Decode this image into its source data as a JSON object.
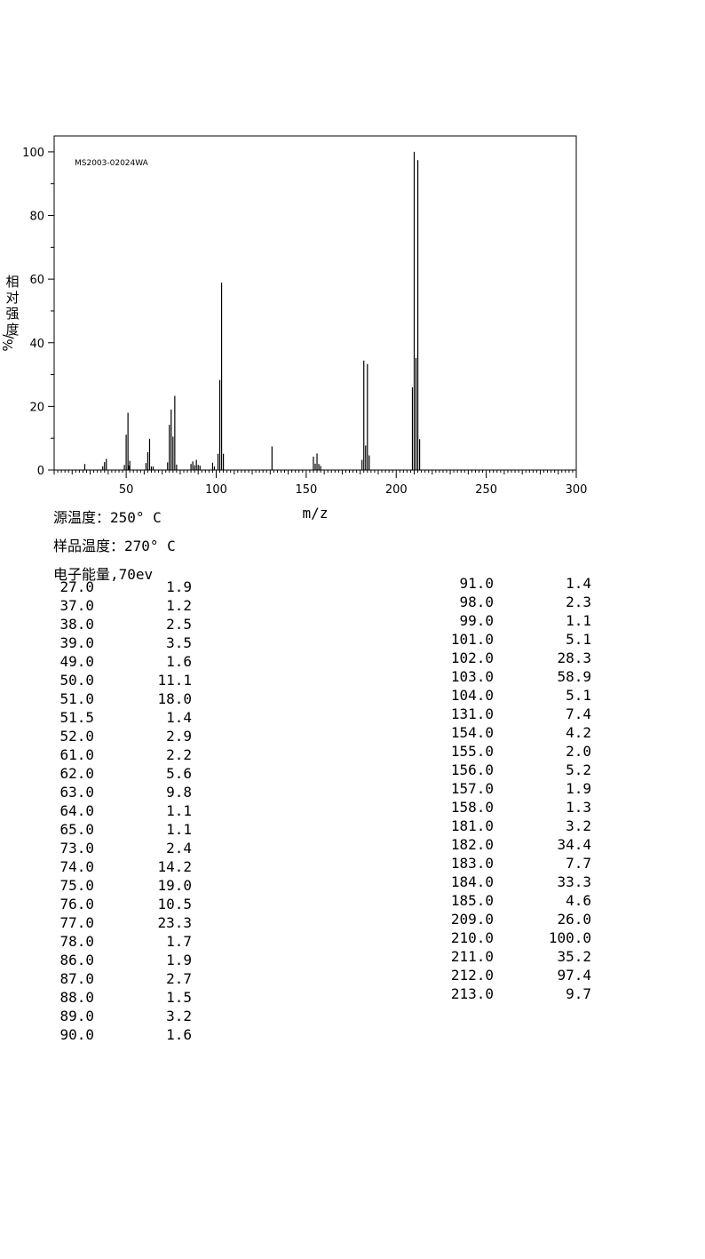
{
  "chart_data": {
    "type": "bar",
    "title": "",
    "annotation": "MS2003-02024WA",
    "xlabel": "m/z",
    "ylabel": [
      "相",
      "对",
      "强",
      "度",
      "%/"
    ],
    "xlim": [
      10,
      300
    ],
    "ylim": [
      0,
      105
    ],
    "x_ticks": [
      50,
      100,
      150,
      200,
      250,
      300
    ],
    "y_ticks": [
      0,
      20,
      40,
      60,
      80,
      100
    ],
    "grid": false,
    "peaks": [
      [
        27.0,
        1.9
      ],
      [
        37.0,
        1.2
      ],
      [
        38.0,
        2.5
      ],
      [
        39.0,
        3.5
      ],
      [
        49.0,
        1.6
      ],
      [
        50.0,
        11.1
      ],
      [
        51.0,
        18.0
      ],
      [
        51.5,
        1.4
      ],
      [
        52.0,
        2.9
      ],
      [
        61.0,
        2.2
      ],
      [
        62.0,
        5.6
      ],
      [
        63.0,
        9.8
      ],
      [
        64.0,
        1.1
      ],
      [
        65.0,
        1.1
      ],
      [
        73.0,
        2.4
      ],
      [
        74.0,
        14.2
      ],
      [
        75.0,
        19.0
      ],
      [
        76.0,
        10.5
      ],
      [
        77.0,
        23.3
      ],
      [
        78.0,
        1.7
      ],
      [
        86.0,
        1.9
      ],
      [
        87.0,
        2.7
      ],
      [
        88.0,
        1.5
      ],
      [
        89.0,
        3.2
      ],
      [
        90.0,
        1.6
      ],
      [
        91.0,
        1.4
      ],
      [
        98.0,
        2.3
      ],
      [
        99.0,
        1.1
      ],
      [
        101.0,
        5.1
      ],
      [
        102.0,
        28.3
      ],
      [
        103.0,
        58.9
      ],
      [
        104.0,
        5.1
      ],
      [
        131.0,
        7.4
      ],
      [
        154.0,
        4.2
      ],
      [
        155.0,
        2.0
      ],
      [
        156.0,
        5.2
      ],
      [
        157.0,
        1.9
      ],
      [
        158.0,
        1.3
      ],
      [
        181.0,
        3.2
      ],
      [
        182.0,
        34.4
      ],
      [
        183.0,
        7.7
      ],
      [
        184.0,
        33.3
      ],
      [
        185.0,
        4.6
      ],
      [
        209.0,
        26.0
      ],
      [
        210.0,
        100.0
      ],
      [
        211.0,
        35.2
      ],
      [
        212.0,
        97.4
      ],
      [
        213.0,
        9.7
      ]
    ]
  },
  "conditions": {
    "source_temp": "源温度：250° C",
    "sample_temp": "样品温度：270° C",
    "electron_energy": "电子能量,70ev"
  },
  "table": {
    "left": [
      [
        "27.0",
        "1.9"
      ],
      [
        "37.0",
        "1.2"
      ],
      [
        "38.0",
        "2.5"
      ],
      [
        "39.0",
        "3.5"
      ],
      [
        "49.0",
        "1.6"
      ],
      [
        "50.0",
        "11.1"
      ],
      [
        "51.0",
        "18.0"
      ],
      [
        "51.5",
        "1.4"
      ],
      [
        "52.0",
        "2.9"
      ],
      [
        "61.0",
        "2.2"
      ],
      [
        "62.0",
        "5.6"
      ],
      [
        "63.0",
        "9.8"
      ],
      [
        "64.0",
        "1.1"
      ],
      [
        "65.0",
        "1.1"
      ],
      [
        "73.0",
        "2.4"
      ],
      [
        "74.0",
        "14.2"
      ],
      [
        "75.0",
        "19.0"
      ],
      [
        "76.0",
        "10.5"
      ],
      [
        "77.0",
        "23.3"
      ],
      [
        "78.0",
        "1.7"
      ],
      [
        "86.0",
        "1.9"
      ],
      [
        "87.0",
        "2.7"
      ],
      [
        "88.0",
        "1.5"
      ],
      [
        "89.0",
        "3.2"
      ],
      [
        "90.0",
        "1.6"
      ]
    ],
    "right": [
      [
        "91.0",
        "1.4"
      ],
      [
        "98.0",
        "2.3"
      ],
      [
        "99.0",
        "1.1"
      ],
      [
        "101.0",
        "5.1"
      ],
      [
        "102.0",
        "28.3"
      ],
      [
        "103.0",
        "58.9"
      ],
      [
        "104.0",
        "5.1"
      ],
      [
        "131.0",
        "7.4"
      ],
      [
        "154.0",
        "4.2"
      ],
      [
        "155.0",
        "2.0"
      ],
      [
        "156.0",
        "5.2"
      ],
      [
        "157.0",
        "1.9"
      ],
      [
        "158.0",
        "1.3"
      ],
      [
        "181.0",
        "3.2"
      ],
      [
        "182.0",
        "34.4"
      ],
      [
        "183.0",
        "7.7"
      ],
      [
        "184.0",
        "33.3"
      ],
      [
        "185.0",
        "4.6"
      ],
      [
        "209.0",
        "26.0"
      ],
      [
        "210.0",
        "100.0"
      ],
      [
        "211.0",
        "35.2"
      ],
      [
        "212.0",
        "97.4"
      ],
      [
        "213.0",
        "9.7"
      ]
    ]
  }
}
